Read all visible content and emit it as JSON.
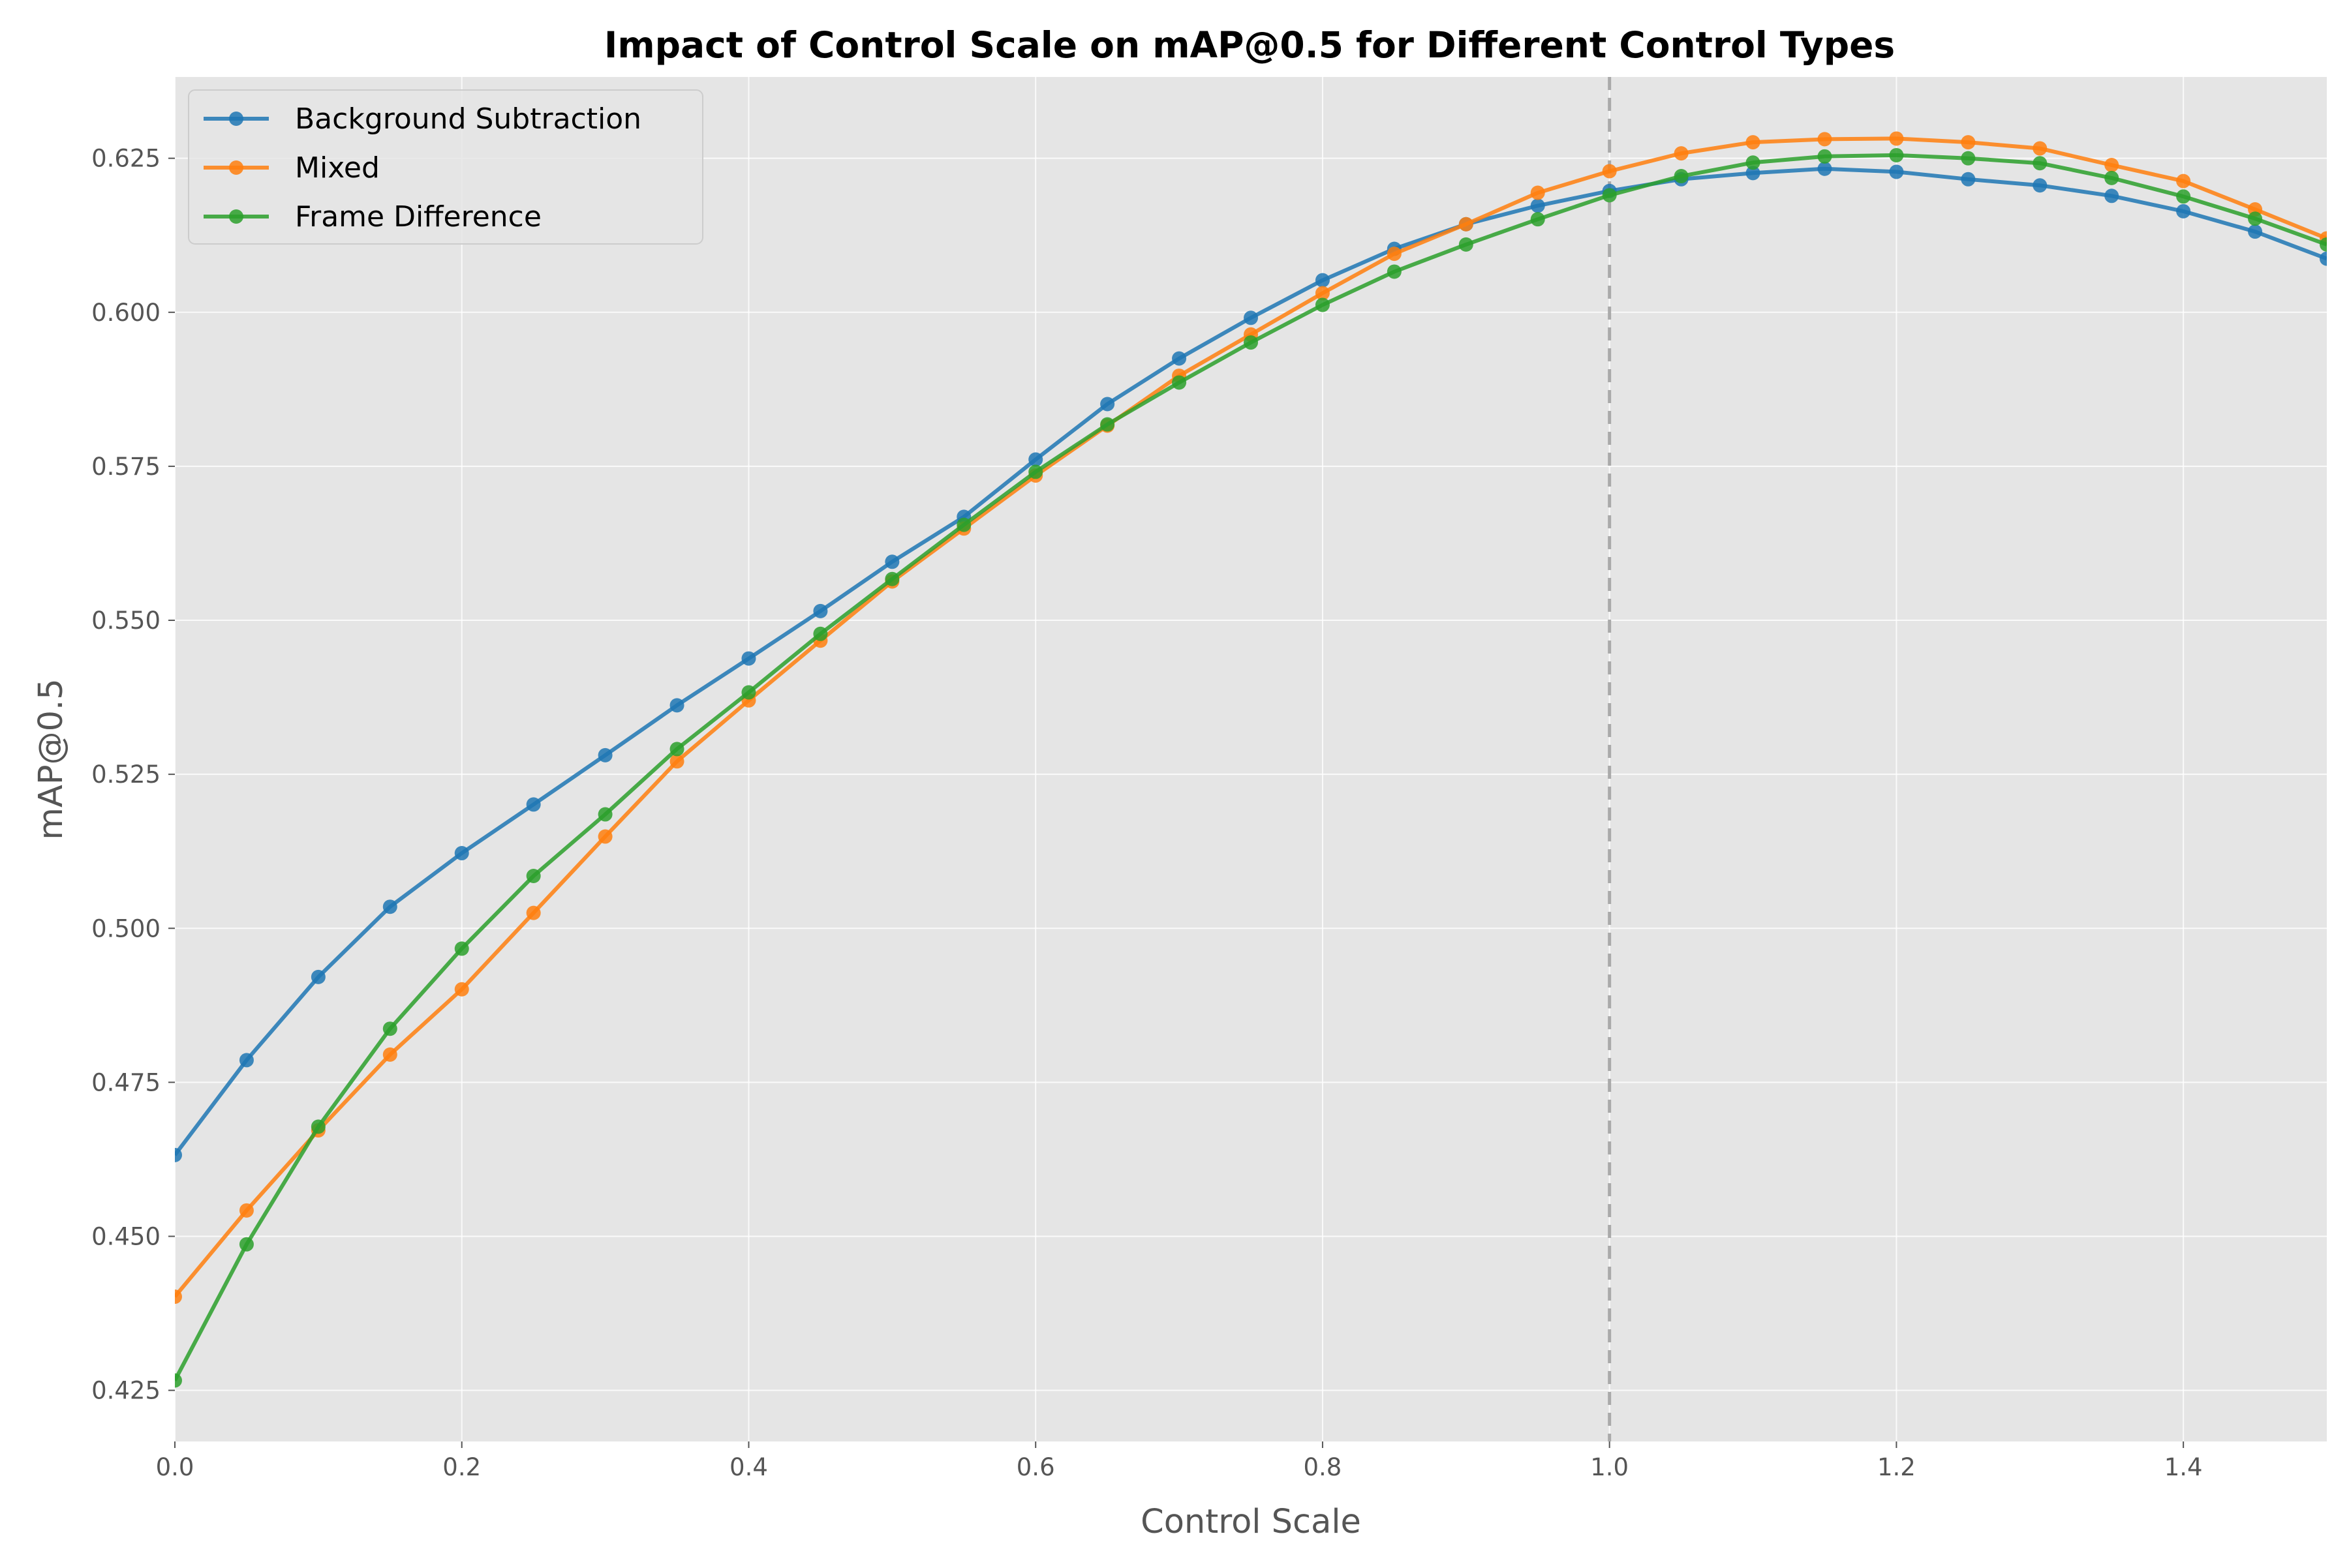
{
  "chart_data": {
    "type": "line",
    "title": "Impact of Control Scale on mAP@0.5 for Different Control Types",
    "xlabel": "Control Scale",
    "ylabel": "mAP@0.5",
    "xlim": [
      0.0,
      1.5
    ],
    "ylim": [
      0.4167,
      0.6382
    ],
    "xticks": [
      "0.0",
      "0.2",
      "0.4",
      "0.6",
      "0.8",
      "1.0",
      "1.2",
      "1.4"
    ],
    "yticks": [
      "0.425",
      "0.450",
      "0.475",
      "0.500",
      "0.525",
      "0.550",
      "0.575",
      "0.600",
      "0.625"
    ],
    "grid": true,
    "legend_position": "upper-left",
    "reference_line": {
      "orientation": "vertical",
      "x": 1.0,
      "style": "dashed",
      "color": "#aaaaaa"
    },
    "x": [
      0.0,
      0.05,
      0.1,
      0.15,
      0.2,
      0.25,
      0.3,
      0.35,
      0.4,
      0.45,
      0.5,
      0.55,
      0.6,
      0.65,
      0.7,
      0.75,
      0.8,
      0.85,
      0.9,
      0.95,
      1.0,
      1.05,
      1.1,
      1.15,
      1.2,
      1.25,
      1.3,
      1.35,
      1.4,
      1.45,
      1.5
    ],
    "series": [
      {
        "name": "Background Subtraction",
        "color": "#1f77b4",
        "values": [
          0.4632,
          0.4786,
          0.4921,
          0.5035,
          0.5122,
          0.5201,
          0.5281,
          0.5362,
          0.5438,
          0.5515,
          0.5595,
          0.5668,
          0.5761,
          0.5851,
          0.5925,
          0.5991,
          0.6052,
          0.6103,
          0.6143,
          0.6173,
          0.6197,
          0.6216,
          0.6226,
          0.6233,
          0.6228,
          0.6216,
          0.6206,
          0.6189,
          0.6164,
          0.6131,
          0.6087
        ]
      },
      {
        "name": "Mixed",
        "color": "#ff7f0e",
        "values": [
          0.4402,
          0.4542,
          0.4672,
          0.4795,
          0.4901,
          0.5025,
          0.5149,
          0.5271,
          0.537,
          0.5467,
          0.5563,
          0.5649,
          0.5735,
          0.5816,
          0.5897,
          0.5964,
          0.6031,
          0.6095,
          0.6143,
          0.6194,
          0.6229,
          0.6258,
          0.6276,
          0.6281,
          0.6282,
          0.6276,
          0.6266,
          0.6239,
          0.6213,
          0.6167,
          0.612
        ]
      },
      {
        "name": "Frame Difference",
        "color": "#2ca02c",
        "values": [
          0.4266,
          0.4487,
          0.4678,
          0.4837,
          0.4967,
          0.5085,
          0.5185,
          0.5291,
          0.5383,
          0.5478,
          0.5567,
          0.5655,
          0.5741,
          0.5818,
          0.5886,
          0.5951,
          0.6012,
          0.6066,
          0.611,
          0.6151,
          0.619,
          0.6221,
          0.6243,
          0.6253,
          0.6255,
          0.625,
          0.6242,
          0.6218,
          0.6188,
          0.6152,
          0.611
        ]
      }
    ]
  }
}
